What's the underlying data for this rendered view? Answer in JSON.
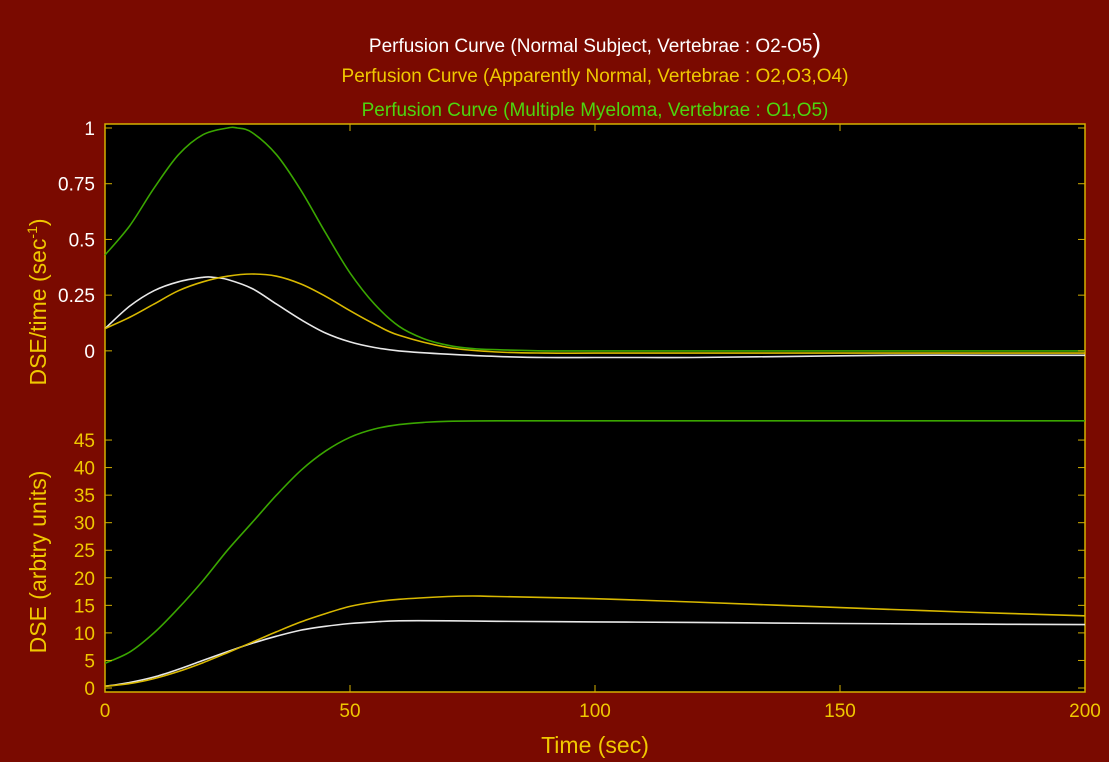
{
  "titles": {
    "normal_main": "Perfusion Curve (Normal Subject, Vertebrae : O2-O5",
    "normal_close": ")",
    "apparent": "Perfusion Curve (Apparently Normal, Vertebrae : O2,O3,O4)",
    "myeloma": "Perfusion Curve (Multiple Myeloma, Vertebrae : O1,O5)"
  },
  "colors": {
    "background": "#7a0a00",
    "plot_bg": "#000000",
    "frame": "#d4b000",
    "normal": "#e8e8e8",
    "apparent": "#d8b800",
    "myeloma": "#3aa600",
    "yellow_text": "#f0c800",
    "white_text": "#ffffff"
  },
  "chart_data": [
    {
      "type": "line",
      "ylabel_main": "DSE/time (sec",
      "ylabel_sup": "-1",
      "ylabel_end": ")",
      "xlim": [
        0,
        200
      ],
      "ylim": [
        -0.05,
        1.0
      ],
      "yticks": [
        0,
        0.25,
        0.5,
        0.75,
        1
      ],
      "ytick_labels": [
        "0",
        "0.25",
        "0.5",
        "0.75",
        "1"
      ],
      "series": [
        {
          "key": "normal",
          "x": [
            0,
            5,
            10,
            15,
            20,
            22,
            25,
            30,
            35,
            40,
            45,
            50,
            55,
            60,
            70,
            80,
            90,
            100,
            110,
            120,
            140,
            160,
            180,
            200
          ],
          "y": [
            0.1,
            0.2,
            0.27,
            0.31,
            0.33,
            0.33,
            0.32,
            0.28,
            0.21,
            0.14,
            0.08,
            0.04,
            0.015,
            0.0,
            -0.015,
            -0.025,
            -0.03,
            -0.03,
            -0.03,
            -0.03,
            -0.025,
            -0.02,
            -0.02,
            -0.02
          ]
        },
        {
          "key": "apparent",
          "x": [
            0,
            5,
            10,
            15,
            20,
            25,
            30,
            35,
            40,
            45,
            50,
            55,
            60,
            70,
            80,
            90,
            100,
            120,
            140,
            160,
            180,
            200
          ],
          "y": [
            0.1,
            0.15,
            0.21,
            0.27,
            0.31,
            0.335,
            0.345,
            0.335,
            0.3,
            0.245,
            0.18,
            0.12,
            0.07,
            0.015,
            -0.005,
            -0.01,
            -0.01,
            -0.01,
            -0.01,
            -0.01,
            -0.01,
            -0.01
          ]
        },
        {
          "key": "myeloma",
          "x": [
            0,
            5,
            10,
            15,
            20,
            25,
            27,
            30,
            35,
            40,
            45,
            50,
            55,
            60,
            65,
            70,
            75,
            80,
            90,
            100,
            120,
            150,
            200
          ],
          "y": [
            0.43,
            0.56,
            0.73,
            0.88,
            0.97,
            1.0,
            1.0,
            0.98,
            0.88,
            0.72,
            0.53,
            0.35,
            0.21,
            0.11,
            0.055,
            0.025,
            0.01,
            0.005,
            0.0,
            0.0,
            0.0,
            0.0,
            0.0
          ]
        }
      ]
    },
    {
      "type": "line",
      "ylabel": "DSE (arbtry units)",
      "xlabel": "Time (sec)",
      "xlim": [
        0,
        200
      ],
      "ylim": [
        0,
        49
      ],
      "xticks": [
        0,
        50,
        100,
        150,
        200
      ],
      "xtick_labels": [
        "0",
        "50",
        "100",
        "150",
        "200"
      ],
      "yticks": [
        0,
        5,
        10,
        15,
        20,
        25,
        30,
        35,
        40,
        45
      ],
      "ytick_labels": [
        "0",
        "5",
        "10",
        "15",
        "20",
        "25",
        "30",
        "35",
        "40",
        "45"
      ],
      "series": [
        {
          "key": "normal",
          "x": [
            0,
            5,
            10,
            15,
            20,
            25,
            30,
            35,
            40,
            45,
            50,
            55,
            60,
            70,
            80,
            100,
            120,
            150,
            175,
            200
          ],
          "y": [
            0.3,
            1.0,
            2.0,
            3.4,
            5.0,
            6.6,
            8.1,
            9.4,
            10.5,
            11.2,
            11.7,
            12.0,
            12.2,
            12.2,
            12.1,
            12.0,
            11.9,
            11.7,
            11.6,
            11.5
          ]
        },
        {
          "key": "apparent",
          "x": [
            0,
            5,
            10,
            15,
            20,
            25,
            30,
            35,
            40,
            45,
            50,
            55,
            60,
            70,
            75,
            80,
            100,
            120,
            150,
            175,
            200
          ],
          "y": [
            0.3,
            0.8,
            1.7,
            3.0,
            4.6,
            6.4,
            8.3,
            10.2,
            12.0,
            13.5,
            14.8,
            15.6,
            16.1,
            16.6,
            16.7,
            16.6,
            16.2,
            15.6,
            14.6,
            13.8,
            13.1
          ]
        },
        {
          "key": "myeloma",
          "x": [
            0,
            5,
            10,
            15,
            20,
            25,
            30,
            35,
            40,
            45,
            50,
            55,
            60,
            65,
            70,
            80,
            100,
            150,
            200
          ],
          "y": [
            4.5,
            6.5,
            10.0,
            14.5,
            19.5,
            25.0,
            30.0,
            35.0,
            39.5,
            43.0,
            45.5,
            47.0,
            47.8,
            48.2,
            48.4,
            48.5,
            48.5,
            48.5,
            48.5
          ]
        }
      ]
    }
  ]
}
